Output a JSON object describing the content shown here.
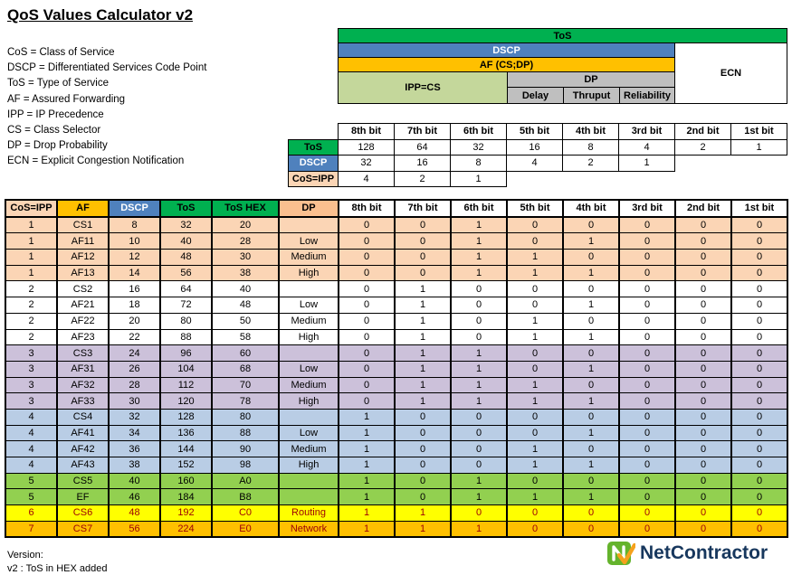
{
  "title": "QoS Values Calculator v2",
  "legend": [
    "CoS = Class of Service",
    "DSCP = Differentiated Services Code Point",
    "ToS = Type of Service",
    "AF = Assured Forwarding",
    "IPP = IP Precedence",
    "CS = Class Selector",
    "DP = Drop Probability",
    "ECN = Explicit Congestion Notification"
  ],
  "tos_diagram": {
    "tos": "ToS",
    "dscp": "DSCP",
    "af": "AF (CS;DP)",
    "ipp": "IPP=CS",
    "dp": "DP",
    "dp_fields": [
      "Delay",
      "Thruput",
      "Reliability"
    ],
    "ecn": "ECN"
  },
  "bit_table": {
    "bit_headers": [
      "8th bit",
      "7th bit",
      "6th bit",
      "5th bit",
      "4th bit",
      "3rd bit",
      "2nd bit",
      "1st bit"
    ],
    "rows": [
      {
        "label": "ToS",
        "color": "#00B050",
        "text_color": "#000000",
        "values": [
          "128",
          "64",
          "32",
          "16",
          "8",
          "4",
          "2",
          "1"
        ]
      },
      {
        "label": "DSCP",
        "color": "#4F81BD",
        "text_color": "#FFFFFF",
        "values": [
          "32",
          "16",
          "8",
          "4",
          "2",
          "1",
          null,
          null
        ]
      },
      {
        "label": "CoS=IPP",
        "color": "#FBD5B5",
        "text_color": "#000000",
        "values": [
          "4",
          "2",
          "1",
          null,
          null,
          null,
          null,
          null
        ]
      }
    ]
  },
  "main_table": {
    "headers": [
      "CoS=IPP",
      "AF",
      "DSCP",
      "ToS",
      "ToS HEX",
      "DP",
      "8th bit",
      "7th bit",
      "6th bit",
      "5th bit",
      "4th bit",
      "3rd bit",
      "2nd bit",
      "1st bit"
    ],
    "header_colors": [
      "#FBD5B5",
      "#FFC000",
      "#4F81BD",
      "#00B050",
      "#00B050",
      "#FABF8F",
      "#FFFFFF",
      "#FFFFFF",
      "#FFFFFF",
      "#FFFFFF",
      "#FFFFFF",
      "#FFFFFF",
      "#FFFFFF",
      "#FFFFFF"
    ],
    "header_text_colors": [
      "#000000",
      "#000000",
      "#FFFFFF",
      "#000000",
      "#000000",
      "#000000",
      "#000000",
      "#000000",
      "#000000",
      "#000000",
      "#000000",
      "#000000",
      "#000000",
      "#000000"
    ],
    "group_colors": {
      "1": "#FBD5B5",
      "2": "#FFFFFF",
      "3": "#CCC1DA",
      "4": "#B9CDE5",
      "5": "#92D050",
      "6": "#FFFF00",
      "7": "#FFC000"
    },
    "group_text_colors": {
      "1": "#000000",
      "2": "#000000",
      "3": "#000000",
      "4": "#000000",
      "5": "#000000",
      "6": "#9C0006",
      "7": "#9C0006"
    },
    "rows": [
      {
        "group": 1,
        "cos": "1",
        "af": "CS1",
        "dscp": "8",
        "tos": "32",
        "hex": "20",
        "dp": "",
        "bits": [
          0,
          0,
          1,
          0,
          0,
          0,
          0,
          0
        ]
      },
      {
        "group": 1,
        "cos": "1",
        "af": "AF11",
        "dscp": "10",
        "tos": "40",
        "hex": "28",
        "dp": "Low",
        "bits": [
          0,
          0,
          1,
          0,
          1,
          0,
          0,
          0
        ]
      },
      {
        "group": 1,
        "cos": "1",
        "af": "AF12",
        "dscp": "12",
        "tos": "48",
        "hex": "30",
        "dp": "Medium",
        "bits": [
          0,
          0,
          1,
          1,
          0,
          0,
          0,
          0
        ]
      },
      {
        "group": 1,
        "cos": "1",
        "af": "AF13",
        "dscp": "14",
        "tos": "56",
        "hex": "38",
        "dp": "High",
        "bits": [
          0,
          0,
          1,
          1,
          1,
          0,
          0,
          0
        ]
      },
      {
        "group": 2,
        "cos": "2",
        "af": "CS2",
        "dscp": "16",
        "tos": "64",
        "hex": "40",
        "dp": "",
        "bits": [
          0,
          1,
          0,
          0,
          0,
          0,
          0,
          0
        ]
      },
      {
        "group": 2,
        "cos": "2",
        "af": "AF21",
        "dscp": "18",
        "tos": "72",
        "hex": "48",
        "dp": "Low",
        "bits": [
          0,
          1,
          0,
          0,
          1,
          0,
          0,
          0
        ]
      },
      {
        "group": 2,
        "cos": "2",
        "af": "AF22",
        "dscp": "20",
        "tos": "80",
        "hex": "50",
        "dp": "Medium",
        "bits": [
          0,
          1,
          0,
          1,
          0,
          0,
          0,
          0
        ]
      },
      {
        "group": 2,
        "cos": "2",
        "af": "AF23",
        "dscp": "22",
        "tos": "88",
        "hex": "58",
        "dp": "High",
        "bits": [
          0,
          1,
          0,
          1,
          1,
          0,
          0,
          0
        ]
      },
      {
        "group": 3,
        "cos": "3",
        "af": "CS3",
        "dscp": "24",
        "tos": "96",
        "hex": "60",
        "dp": "",
        "bits": [
          0,
          1,
          1,
          0,
          0,
          0,
          0,
          0
        ]
      },
      {
        "group": 3,
        "cos": "3",
        "af": "AF31",
        "dscp": "26",
        "tos": "104",
        "hex": "68",
        "dp": "Low",
        "bits": [
          0,
          1,
          1,
          0,
          1,
          0,
          0,
          0
        ]
      },
      {
        "group": 3,
        "cos": "3",
        "af": "AF32",
        "dscp": "28",
        "tos": "112",
        "hex": "70",
        "dp": "Medium",
        "bits": [
          0,
          1,
          1,
          1,
          0,
          0,
          0,
          0
        ]
      },
      {
        "group": 3,
        "cos": "3",
        "af": "AF33",
        "dscp": "30",
        "tos": "120",
        "hex": "78",
        "dp": "High",
        "bits": [
          0,
          1,
          1,
          1,
          1,
          0,
          0,
          0
        ]
      },
      {
        "group": 4,
        "cos": "4",
        "af": "CS4",
        "dscp": "32",
        "tos": "128",
        "hex": "80",
        "dp": "",
        "bits": [
          1,
          0,
          0,
          0,
          0,
          0,
          0,
          0
        ]
      },
      {
        "group": 4,
        "cos": "4",
        "af": "AF41",
        "dscp": "34",
        "tos": "136",
        "hex": "88",
        "dp": "Low",
        "bits": [
          1,
          0,
          0,
          0,
          1,
          0,
          0,
          0
        ]
      },
      {
        "group": 4,
        "cos": "4",
        "af": "AF42",
        "dscp": "36",
        "tos": "144",
        "hex": "90",
        "dp": "Medium",
        "bits": [
          1,
          0,
          0,
          1,
          0,
          0,
          0,
          0
        ]
      },
      {
        "group": 4,
        "cos": "4",
        "af": "AF43",
        "dscp": "38",
        "tos": "152",
        "hex": "98",
        "dp": "High",
        "bits": [
          1,
          0,
          0,
          1,
          1,
          0,
          0,
          0
        ]
      },
      {
        "group": 5,
        "cos": "5",
        "af": "CS5",
        "dscp": "40",
        "tos": "160",
        "hex": "A0",
        "dp": "",
        "bits": [
          1,
          0,
          1,
          0,
          0,
          0,
          0,
          0
        ]
      },
      {
        "group": 5,
        "cos": "5",
        "af": "EF",
        "dscp": "46",
        "tos": "184",
        "hex": "B8",
        "dp": "",
        "bits": [
          1,
          0,
          1,
          1,
          1,
          0,
          0,
          0
        ]
      },
      {
        "group": 6,
        "cos": "6",
        "af": "CS6",
        "dscp": "48",
        "tos": "192",
        "hex": "C0",
        "dp": "Routing",
        "bits": [
          1,
          1,
          0,
          0,
          0,
          0,
          0,
          0
        ]
      },
      {
        "group": 7,
        "cos": "7",
        "af": "CS7",
        "dscp": "56",
        "tos": "224",
        "hex": "E0",
        "dp": "Network",
        "bits": [
          1,
          1,
          1,
          0,
          0,
          0,
          0,
          0
        ]
      }
    ]
  },
  "footer": {
    "version_label": "Version:",
    "version_note": "v2 : ToS in HEX added"
  },
  "logo": {
    "text": "NetContractor"
  },
  "colors": {
    "tos_green": "#00B050",
    "dscp_blue": "#4F81BD",
    "af_gold": "#FFC000",
    "ipp_light_green": "#C4D79B",
    "dp_gray": "#BFBFBF",
    "cos_peach": "#FBD5B5",
    "dp_header_orange": "#FABF8F",
    "alert_red": "#9C0006",
    "logo_green": "#64B32C",
    "logo_orange": "#F5A11C",
    "logo_navy": "#17375D"
  }
}
